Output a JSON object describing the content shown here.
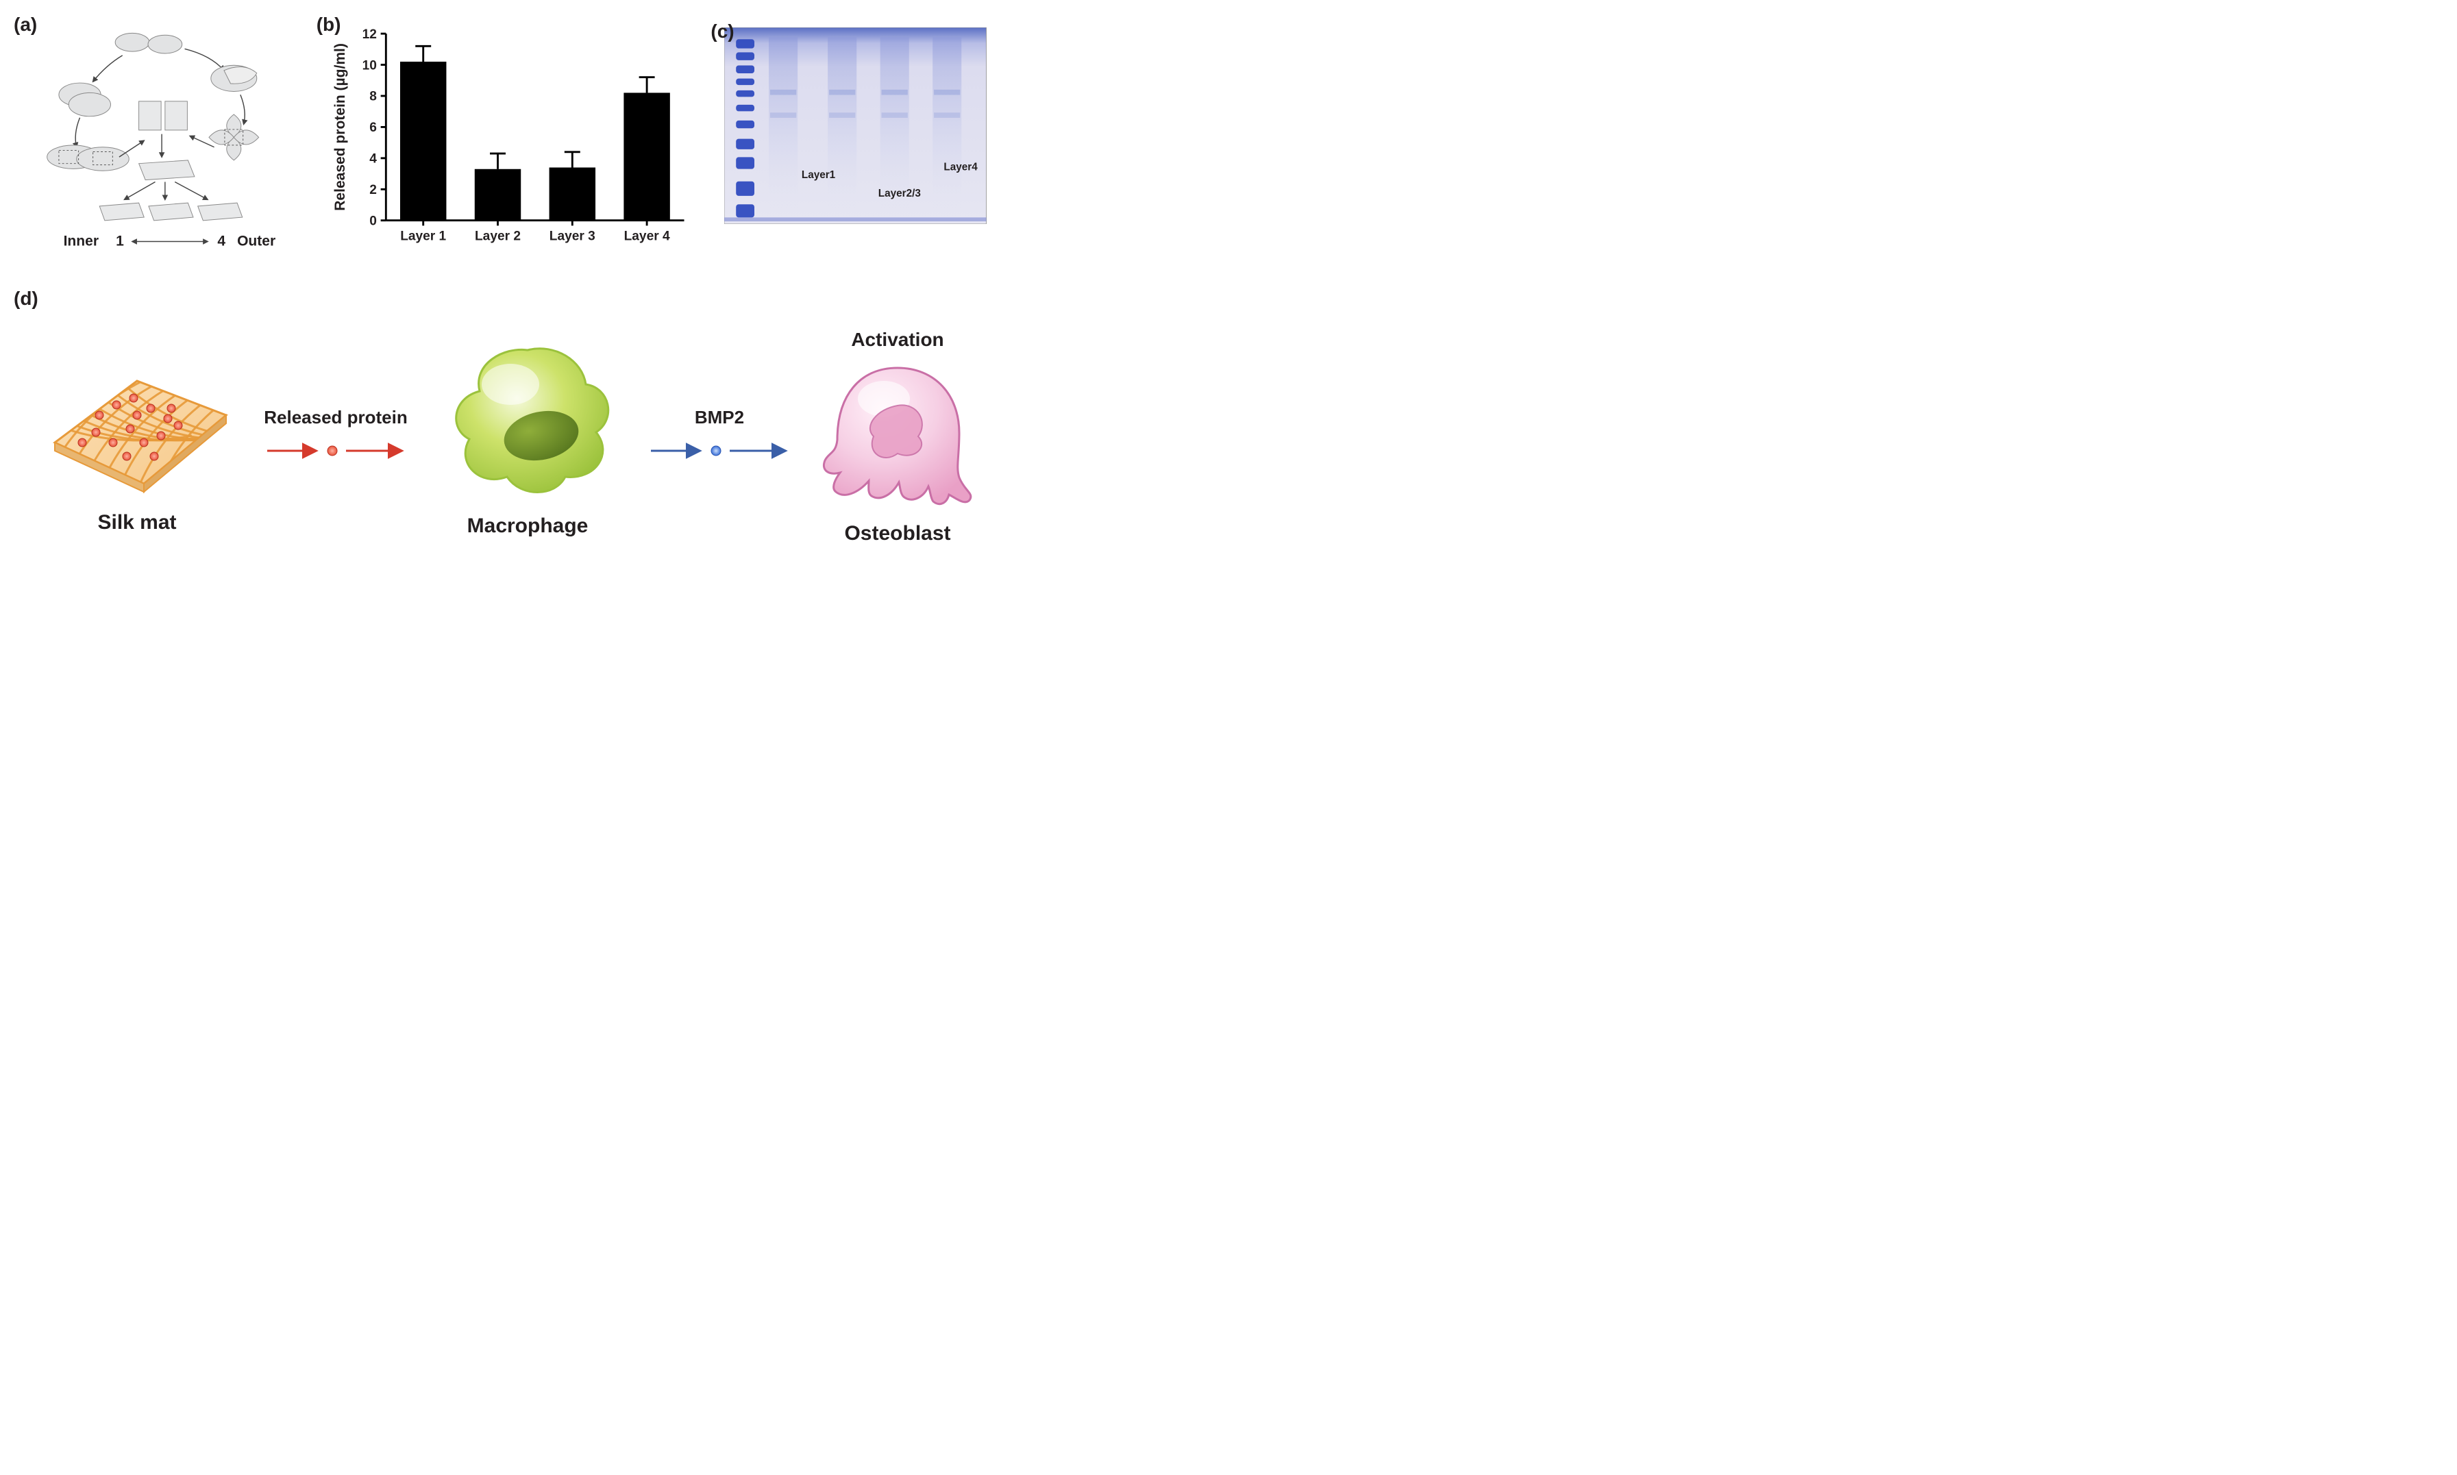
{
  "labels": {
    "a": "(a)",
    "b": "(b)",
    "c": "(c)",
    "d": "(d)"
  },
  "panel_a": {
    "inner_text": "Inner",
    "outer_text": "Outer",
    "inner_num": "1",
    "outer_num": "4",
    "fill_color": "#e2e3e4",
    "stroke_color": "#444444"
  },
  "panel_b": {
    "type": "bar",
    "y_axis_label": "Released protein (µg/ml)",
    "categories": [
      "Layer 1",
      "Layer 2",
      "Layer 3",
      "Layer 4"
    ],
    "values": [
      10.2,
      3.3,
      3.4,
      8.2
    ],
    "errors": [
      1.0,
      1.0,
      1.0,
      1.0
    ],
    "ylim": [
      0,
      12
    ],
    "ytick_step": 2,
    "bar_color": "#000000",
    "axis_color": "#000000",
    "bar_width": 0.62,
    "label_fontsize": 20,
    "tick_fontsize": 20,
    "axis_label_fontsize": 22,
    "background_color": "#ffffff"
  },
  "panel_c": {
    "lane_labels": [
      "Layer1",
      "Layer2/3",
      "Layer4"
    ],
    "gel_bg_top": "#5a6fc4",
    "gel_bg": "#dcdcef",
    "band_color": "#2f4bbf",
    "label_fontsize": 16
  },
  "panel_d": {
    "silk_caption": "Silk mat",
    "macrophage_caption": "Macrophage",
    "osteoblast_caption": "Osteoblast",
    "activation_caption": "Activation",
    "released_protein_label": "Released protein",
    "bmp2_label": "BMP2",
    "silk_fill": "#f7c98a",
    "silk_line": "#e79a3a",
    "silk_dot": "#e8533a",
    "macrophage_fill_light": "#cde26a",
    "macrophage_fill_mid": "#9bc23c",
    "macrophage_fill_dark": "#5a7a20",
    "osteoblast_fill_light": "#f6cfe4",
    "osteoblast_fill_mid": "#e9a0c6",
    "osteoblast_stroke": "#c96fa6",
    "arrow_red": "#d53a2c",
    "arrow_blue": "#3a5fa8",
    "bmp2_dot": "#3a6fd8"
  }
}
